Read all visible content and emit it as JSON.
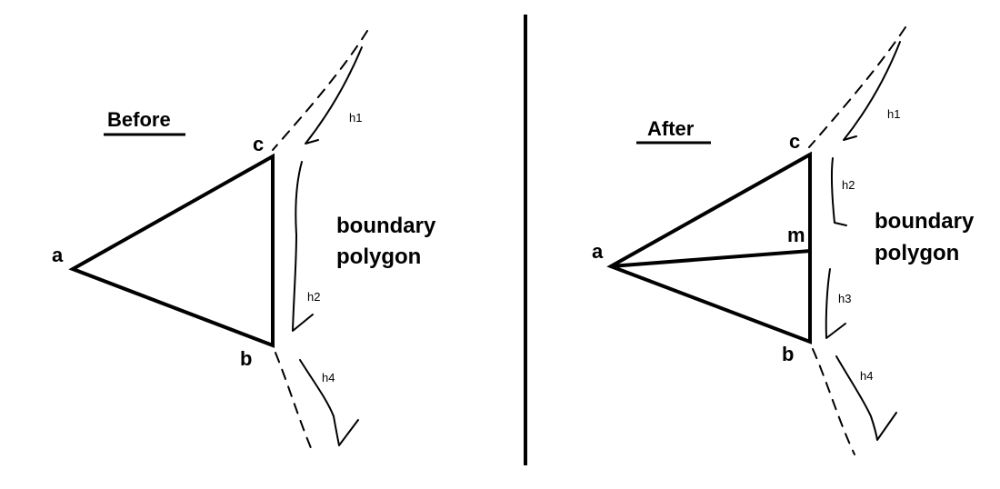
{
  "before": {
    "title": "Before",
    "vertices": {
      "a": "a",
      "b": "b",
      "c": "c"
    },
    "boundary_label": [
      "boundary",
      "polygon"
    ],
    "segments": [
      "h1",
      "h2",
      "h4"
    ]
  },
  "after": {
    "title": "After",
    "vertices": {
      "a": "a",
      "b": "b",
      "c": "c",
      "m": "m"
    },
    "boundary_label": [
      "boundary",
      "polygon"
    ],
    "segments": [
      "h1",
      "h2",
      "h3",
      "h4"
    ]
  }
}
